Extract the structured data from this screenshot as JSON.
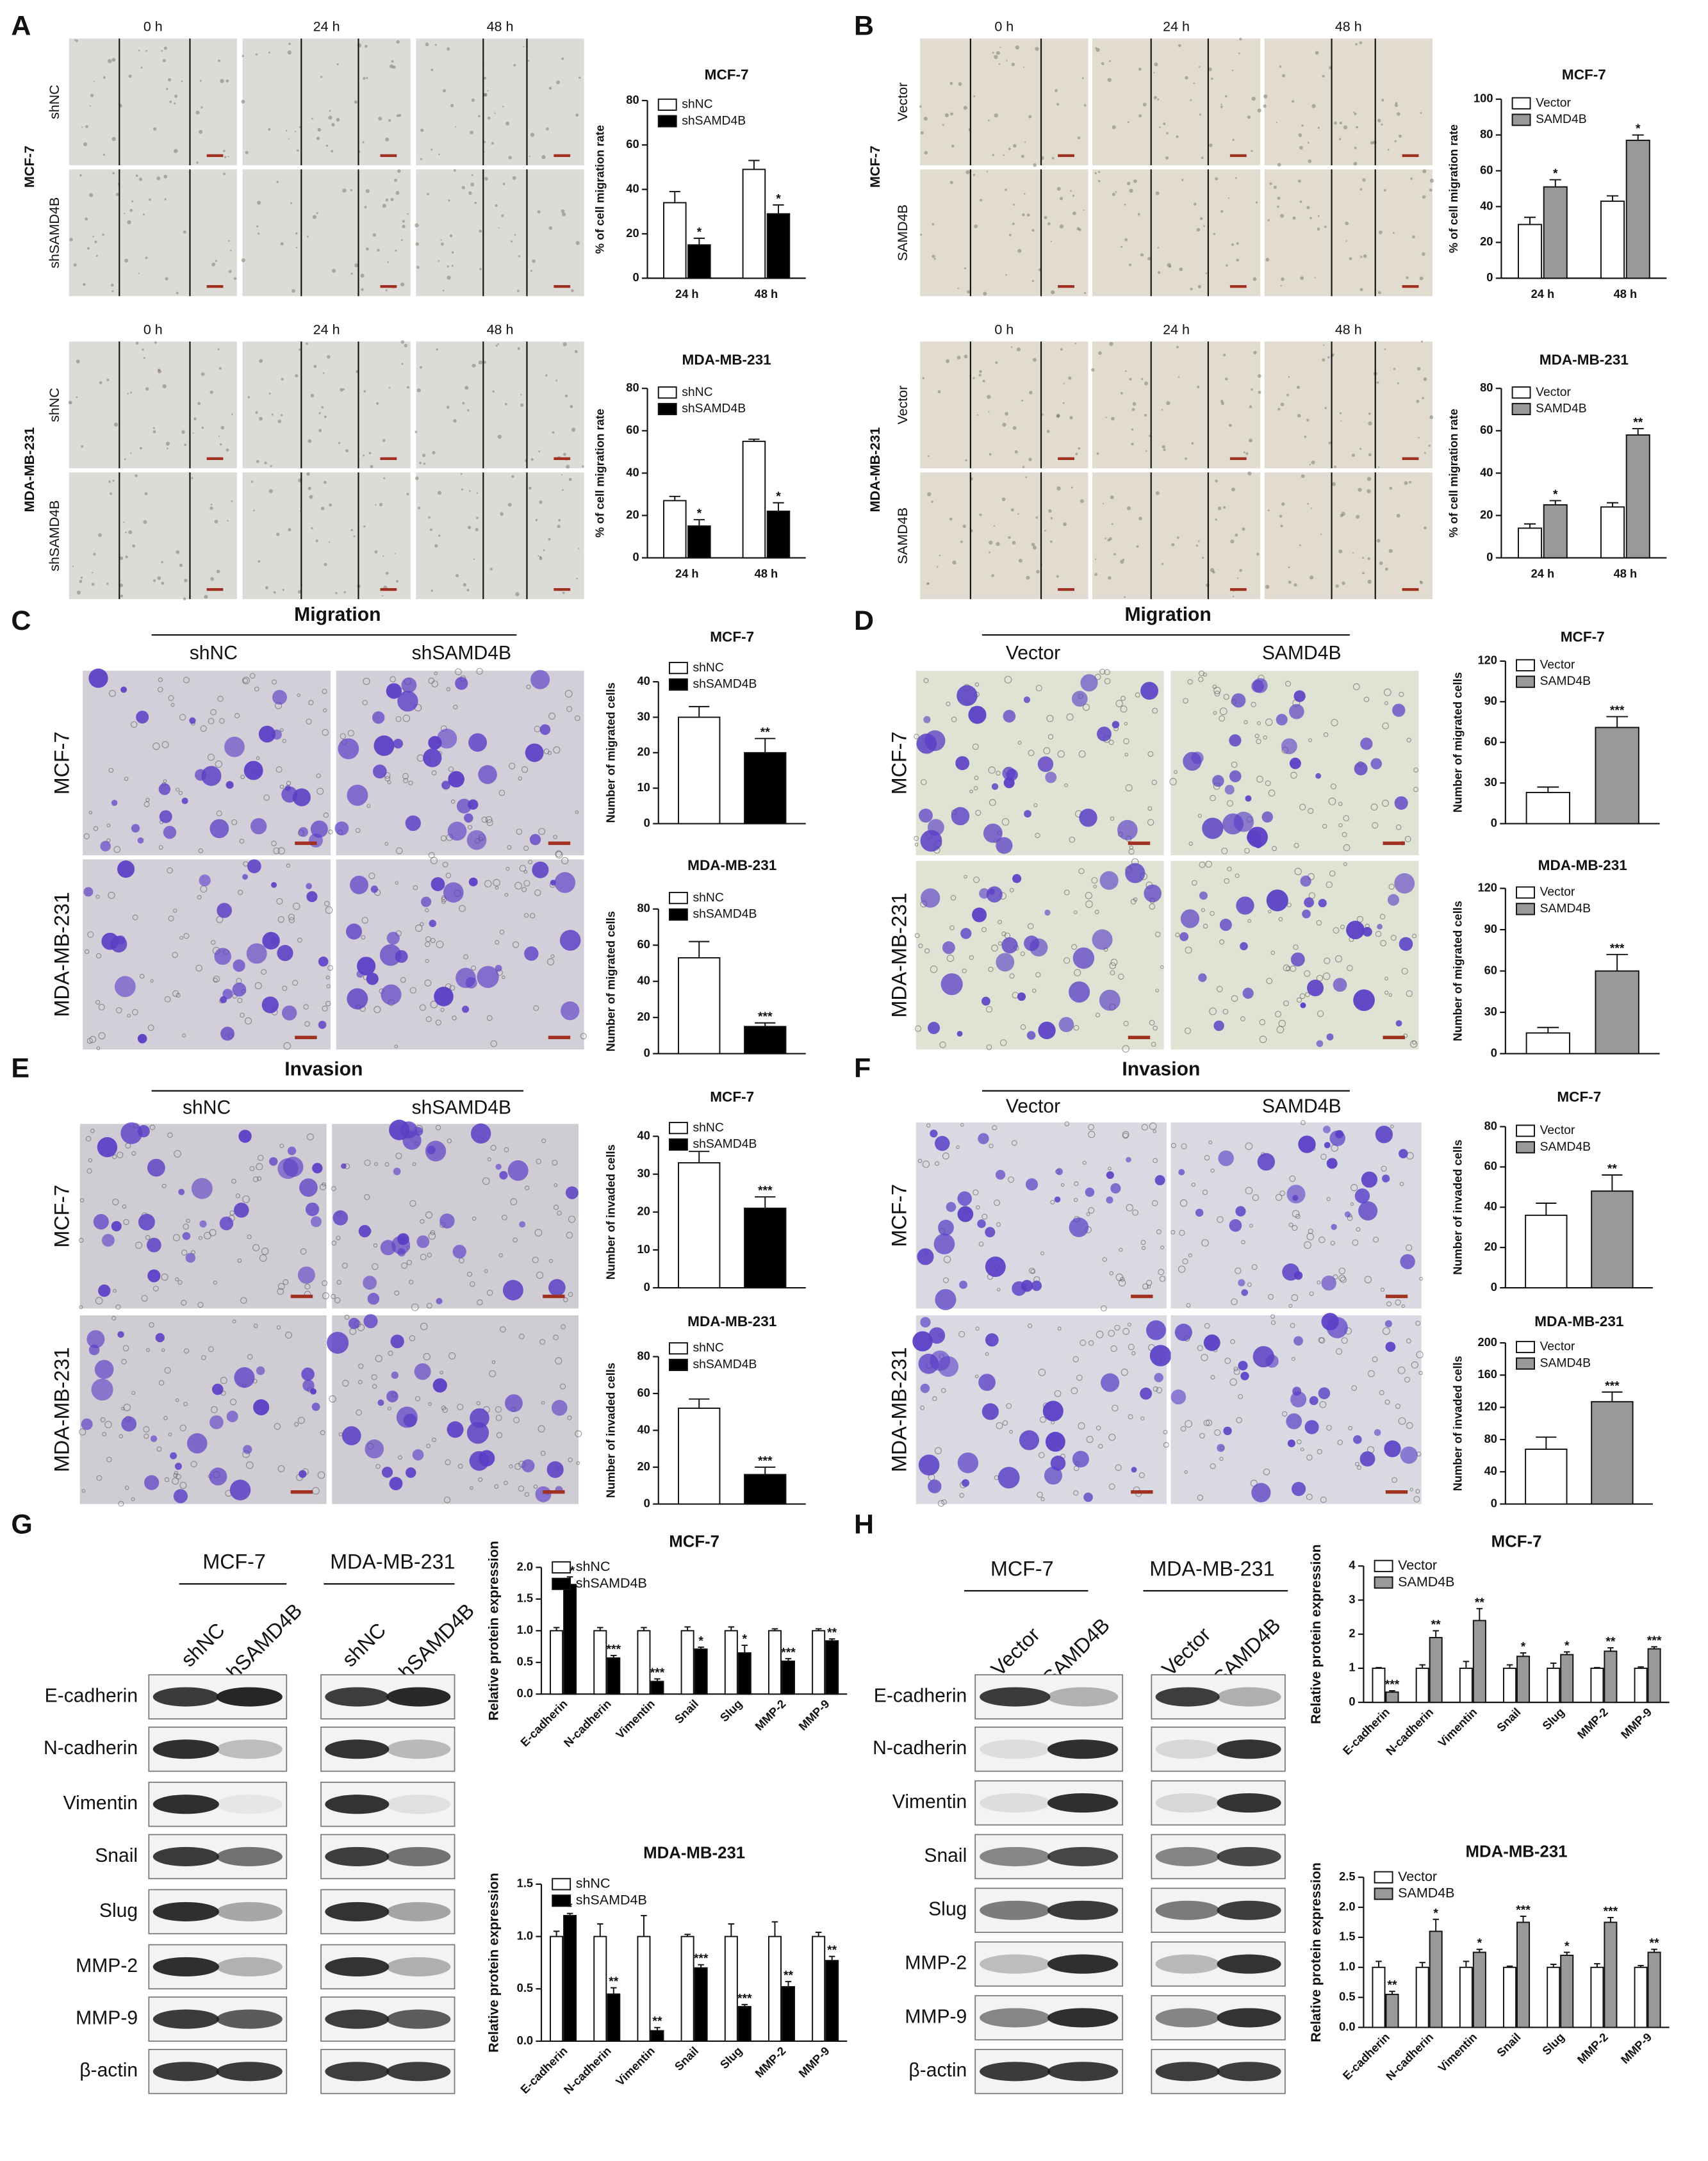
{
  "scratch_panels": [
    {
      "letter": "A",
      "rows": [
        {
          "cell_line": "MCF-7",
          "time_labels": [
            "0 h",
            "24 h",
            "48 h"
          ],
          "groups": [
            "shNC",
            "shSAMD4B"
          ]
        },
        {
          "cell_line": "MDA-MB-231",
          "time_labels": [
            "0 h",
            "24 h",
            "48 h"
          ],
          "groups": [
            "shNC",
            "shSAMD4B"
          ]
        }
      ]
    },
    {
      "letter": "B",
      "rows": [
        {
          "cell_line": "MCF-7",
          "time_labels": [
            "0 h",
            "24 h",
            "48 h"
          ],
          "groups": [
            "Vector",
            "SAMD4B"
          ]
        },
        {
          "cell_line": "MDA-MB-231",
          "time_labels": [
            "0 h",
            "24 h",
            "48 h"
          ],
          "groups": [
            "Vector",
            "SAMD4B"
          ]
        }
      ]
    }
  ],
  "transwell_panels": [
    {
      "letter": "C",
      "title": "Migration",
      "groups": [
        "shNC",
        "shSAMD4B"
      ],
      "cell_lines": [
        "MCF-7",
        "MDA-MB-231"
      ]
    },
    {
      "letter": "D",
      "title": "Migration",
      "groups": [
        "Vector",
        "SAMD4B"
      ],
      "cell_lines": [
        "MCF-7",
        "MDA-MB-231"
      ]
    },
    {
      "letter": "E",
      "title": "Invasion",
      "groups": [
        "shNC",
        "shSAMD4B"
      ],
      "cell_lines": [
        "MCF-7",
        "MDA-MB-231"
      ]
    },
    {
      "letter": "F",
      "title": "Invasion",
      "groups": [
        "Vector",
        "SAMD4B"
      ],
      "cell_lines": [
        "MCF-7",
        "MDA-MB-231"
      ]
    }
  ],
  "blots": [
    {
      "letter": "G",
      "cell_lines": [
        "MCF-7",
        "MDA-MB-231"
      ],
      "groups": [
        [
          "shNC",
          "shSAMD4B"
        ],
        [
          "shNC",
          "shSAMD4B"
        ]
      ],
      "proteins": [
        "E-cadherin",
        "N-cadherin",
        "Vimentin",
        "Snail",
        "Slug",
        "MMP-2",
        "MMP-9",
        "β-actin"
      ]
    },
    {
      "letter": "H",
      "cell_lines": [
        "MCF-7",
        "MDA-MB-231"
      ],
      "groups": [
        [
          "Vector",
          "SAMD4B"
        ],
        [
          "Vector",
          "SAMD4B"
        ]
      ],
      "proteins": [
        "E-cadherin",
        "N-cadherin",
        "Vimentin",
        "Snail",
        "Slug",
        "MMP-2",
        "MMP-9",
        "β-actin"
      ]
    }
  ],
  "chart_data": [
    {
      "type": "bar",
      "title": "MCF-7",
      "y_label": "% of cell migration rate",
      "categories": [
        "24 h",
        "48 h"
      ],
      "series": [
        {
          "name": "shNC",
          "color": "#ffffff",
          "values": [
            34,
            49
          ],
          "errors": [
            5,
            4
          ]
        },
        {
          "name": "shSAMD4B",
          "color": "#000000",
          "values": [
            15,
            29
          ],
          "errors": [
            3,
            4
          ],
          "stars": [
            "*",
            "*"
          ]
        }
      ],
      "ylim": [
        0,
        80
      ],
      "yticks": [
        0,
        20,
        40,
        60,
        80
      ]
    },
    {
      "type": "bar",
      "title": "MDA-MB-231",
      "y_label": "% of cell migration rate",
      "categories": [
        "24 h",
        "48 h"
      ],
      "series": [
        {
          "name": "shNC",
          "color": "#ffffff",
          "values": [
            27,
            55
          ],
          "errors": [
            2,
            1
          ]
        },
        {
          "name": "shSAMD4B",
          "color": "#000000",
          "values": [
            15,
            22
          ],
          "errors": [
            3,
            4
          ],
          "stars": [
            "*",
            "*"
          ]
        }
      ],
      "ylim": [
        0,
        80
      ],
      "yticks": [
        0,
        20,
        40,
        60,
        80
      ]
    },
    {
      "type": "bar",
      "title": "MCF-7",
      "y_label": "% of cell migration rate",
      "categories": [
        "24 h",
        "48 h"
      ],
      "series": [
        {
          "name": "Vector",
          "color": "#ffffff",
          "values": [
            30,
            43
          ],
          "errors": [
            4,
            3
          ]
        },
        {
          "name": "SAMD4B",
          "color": "#999999",
          "values": [
            51,
            77
          ],
          "errors": [
            4,
            3
          ],
          "stars": [
            "*",
            "*"
          ]
        }
      ],
      "ylim": [
        0,
        100
      ],
      "yticks": [
        0,
        20,
        40,
        60,
        80,
        100
      ]
    },
    {
      "type": "bar",
      "title": "MDA-MB-231",
      "y_label": "% of cell migration rate",
      "categories": [
        "24 h",
        "48 h"
      ],
      "series": [
        {
          "name": "Vector",
          "color": "#ffffff",
          "values": [
            14,
            24
          ],
          "errors": [
            2,
            2
          ]
        },
        {
          "name": "SAMD4B",
          "color": "#999999",
          "values": [
            25,
            58
          ],
          "errors": [
            2,
            3
          ],
          "stars": [
            "*",
            "**"
          ]
        }
      ],
      "ylim": [
        0,
        80
      ],
      "yticks": [
        0,
        20,
        40,
        60,
        80
      ]
    },
    {
      "type": "bar",
      "title": "MCF-7",
      "y_label": "Number of migrated cells",
      "categories": [
        null
      ],
      "series": [
        {
          "name": "shNC",
          "color": "#ffffff",
          "values": [
            30
          ],
          "errors": [
            3
          ]
        },
        {
          "name": "shSAMD4B",
          "color": "#000000",
          "values": [
            20
          ],
          "errors": [
            4
          ],
          "stars": [
            "**"
          ]
        }
      ],
      "ylim": [
        0,
        40
      ],
      "yticks": [
        0,
        10,
        20,
        30,
        40
      ]
    },
    {
      "type": "bar",
      "title": "MDA-MB-231",
      "y_label": "Number of migrated cells",
      "categories": [
        null
      ],
      "series": [
        {
          "name": "shNC",
          "color": "#ffffff",
          "values": [
            53
          ],
          "errors": [
            9
          ]
        },
        {
          "name": "shSAMD4B",
          "color": "#000000",
          "values": [
            15
          ],
          "errors": [
            2
          ],
          "stars": [
            "***"
          ]
        }
      ],
      "ylim": [
        0,
        80
      ],
      "yticks": [
        0,
        20,
        40,
        60,
        80
      ]
    },
    {
      "type": "bar",
      "title": "MCF-7",
      "y_label": "Number of migrated cells",
      "categories": [
        null
      ],
      "series": [
        {
          "name": "Vector",
          "color": "#ffffff",
          "values": [
            23
          ],
          "errors": [
            4
          ]
        },
        {
          "name": "SAMD4B",
          "color": "#999999",
          "values": [
            71
          ],
          "errors": [
            8
          ],
          "stars": [
            "***"
          ]
        }
      ],
      "ylim": [
        0,
        120
      ],
      "yticks": [
        0,
        30,
        60,
        90,
        120
      ]
    },
    {
      "type": "bar",
      "title": "MDA-MB-231",
      "y_label": "Number of migrated cells",
      "categories": [
        null
      ],
      "series": [
        {
          "name": "Vector",
          "color": "#ffffff",
          "values": [
            15
          ],
          "errors": [
            4
          ]
        },
        {
          "name": "SAMD4B",
          "color": "#999999",
          "values": [
            60
          ],
          "errors": [
            12
          ],
          "stars": [
            "***"
          ]
        }
      ],
      "ylim": [
        0,
        120
      ],
      "yticks": [
        0,
        30,
        60,
        90,
        120
      ]
    },
    {
      "type": "bar",
      "title": "MCF-7",
      "y_label": "Number of invaded cells",
      "categories": [
        null
      ],
      "series": [
        {
          "name": "shNC",
          "color": "#ffffff",
          "values": [
            33
          ],
          "errors": [
            3
          ]
        },
        {
          "name": "shSAMD4B",
          "color": "#000000",
          "values": [
            21
          ],
          "errors": [
            3
          ],
          "stars": [
            "***"
          ]
        }
      ],
      "ylim": [
        0,
        40
      ],
      "yticks": [
        0,
        10,
        20,
        30,
        40
      ]
    },
    {
      "type": "bar",
      "title": "MDA-MB-231",
      "y_label": "Number of invaded cells",
      "categories": [
        null
      ],
      "series": [
        {
          "name": "shNC",
          "color": "#ffffff",
          "values": [
            52
          ],
          "errors": [
            5
          ]
        },
        {
          "name": "shSAMD4B",
          "color": "#000000",
          "values": [
            16
          ],
          "errors": [
            4
          ],
          "stars": [
            "***"
          ]
        }
      ],
      "ylim": [
        0,
        80
      ],
      "yticks": [
        0,
        20,
        40,
        60,
        80
      ]
    },
    {
      "type": "bar",
      "title": "MCF-7",
      "y_label": "Number of invaded cells",
      "categories": [
        null
      ],
      "series": [
        {
          "name": "Vector",
          "color": "#ffffff",
          "values": [
            36
          ],
          "errors": [
            6
          ]
        },
        {
          "name": "SAMD4B",
          "color": "#999999",
          "values": [
            48
          ],
          "errors": [
            8
          ],
          "stars": [
            "**"
          ]
        }
      ],
      "ylim": [
        0,
        80
      ],
      "yticks": [
        0,
        20,
        40,
        60,
        80
      ]
    },
    {
      "type": "bar",
      "title": "MDA-MB-231",
      "y_label": "Number of invaded cells",
      "categories": [
        null
      ],
      "series": [
        {
          "name": "Vector",
          "color": "#ffffff",
          "values": [
            68
          ],
          "errors": [
            15
          ]
        },
        {
          "name": "SAMD4B",
          "color": "#999999",
          "values": [
            127
          ],
          "errors": [
            12
          ],
          "stars": [
            "***"
          ]
        }
      ],
      "ylim": [
        0,
        200
      ],
      "yticks": [
        0,
        40,
        80,
        120,
        160,
        200
      ]
    },
    {
      "type": "bar",
      "title": "MCF-7",
      "y_label": "Relative protein expression",
      "categories": [
        "E-cadherin",
        "N-cadherin",
        "Vimentin",
        "Snail",
        "Slug",
        "MMP-2",
        "MMP-9"
      ],
      "series": [
        {
          "name": "shNC",
          "color": "#ffffff",
          "values": [
            1,
            1,
            1,
            1,
            1,
            1,
            1
          ],
          "errors": [
            0.05,
            0.05,
            0.05,
            0.06,
            0.06,
            0.03,
            0.03
          ]
        },
        {
          "name": "shSAMD4B",
          "color": "#000000",
          "values": [
            1.73,
            0.57,
            0.2,
            0.71,
            0.65,
            0.52,
            0.84
          ],
          "errors": [
            0.12,
            0.04,
            0.04,
            0.03,
            0.12,
            0.04,
            0.03
          ],
          "stars": [
            "**",
            "***",
            "***",
            "*",
            "*",
            "***",
            "**"
          ]
        }
      ],
      "ylim": [
        0,
        2
      ],
      "yticks": [
        {
          "value": 0,
          "label": "0.0"
        },
        0.5,
        {
          "value": 1,
          "label": "1.0"
        },
        1.5,
        {
          "value": 2,
          "label": "2.0"
        }
      ]
    },
    {
      "type": "bar",
      "title": "MDA-MB-231",
      "y_label": "Relative protein expression",
      "categories": [
        "E-cadherin",
        "N-cadherin",
        "Vimentin",
        "Snail",
        "Slug",
        "MMP-2",
        "MMP-9"
      ],
      "series": [
        {
          "name": "shNC",
          "color": "#ffffff",
          "values": [
            1,
            1,
            1,
            1,
            1,
            1,
            1
          ],
          "errors": [
            0.05,
            0.12,
            0.2,
            0.02,
            0.12,
            0.14,
            0.04
          ]
        },
        {
          "name": "shSAMD4B",
          "color": "#000000",
          "values": [
            1.2,
            0.45,
            0.1,
            0.7,
            0.33,
            0.52,
            0.77
          ],
          "errors": [
            0.02,
            0.06,
            0.03,
            0.03,
            0.02,
            0.05,
            0.04
          ],
          "stars": [
            "*",
            "**",
            "**",
            "***",
            "***",
            "**",
            "**"
          ]
        }
      ],
      "ylim": [
        0,
        1.5
      ],
      "yticks": [
        {
          "value": 0,
          "label": "0.0"
        },
        0.5,
        {
          "value": 1,
          "label": "1.0"
        },
        1.5
      ]
    },
    {
      "type": "bar",
      "title": "MCF-7",
      "y_label": "Relative protein expression",
      "categories": [
        "E-cadherin",
        "N-cadherin",
        "Vimentin",
        "Snail",
        "Slug",
        "MMP-2",
        "MMP-9"
      ],
      "series": [
        {
          "name": "Vector",
          "color": "#ffffff",
          "values": [
            1,
            1,
            1,
            1,
            1,
            1,
            1
          ],
          "errors": [
            0.02,
            0.1,
            0.2,
            0.1,
            0.15,
            0.02,
            0.04
          ]
        },
        {
          "name": "SAMD4B",
          "color": "#999999",
          "values": [
            0.3,
            1.9,
            2.4,
            1.35,
            1.4,
            1.5,
            1.57
          ],
          "errors": [
            0.04,
            0.2,
            0.35,
            0.1,
            0.08,
            0.1,
            0.06
          ],
          "stars": [
            "***",
            "**",
            "**",
            "*",
            "*",
            "**",
            "***"
          ]
        }
      ],
      "ylim": [
        0,
        4
      ],
      "yticks": [
        0,
        1,
        2,
        3,
        4
      ]
    },
    {
      "type": "bar",
      "title": "MDA-MB-231",
      "y_label": "Relative protein expression",
      "categories": [
        "E-cadherin",
        "N-cadherin",
        "Vimentin",
        "Snail",
        "Slug",
        "MMP-2",
        "MMP-9"
      ],
      "series": [
        {
          "name": "Vector",
          "color": "#ffffff",
          "values": [
            1,
            1,
            1,
            1,
            1,
            1,
            1
          ],
          "errors": [
            0.1,
            0.08,
            0.1,
            0.02,
            0.05,
            0.06,
            0.03
          ]
        },
        {
          "name": "SAMD4B",
          "color": "#999999",
          "values": [
            0.55,
            1.6,
            1.25,
            1.75,
            1.2,
            1.75,
            1.25
          ],
          "errors": [
            0.05,
            0.2,
            0.05,
            0.1,
            0.05,
            0.08,
            0.05
          ],
          "stars": [
            "**",
            "*",
            "*",
            "***",
            "*",
            "***",
            "**"
          ]
        }
      ],
      "ylim": [
        0,
        2.5
      ],
      "yticks": [
        {
          "value": 0,
          "label": "0.0"
        },
        0.5,
        {
          "value": 1,
          "label": "1.0"
        },
        1.5,
        {
          "value": 2,
          "label": "2.0"
        },
        2.5
      ]
    }
  ]
}
